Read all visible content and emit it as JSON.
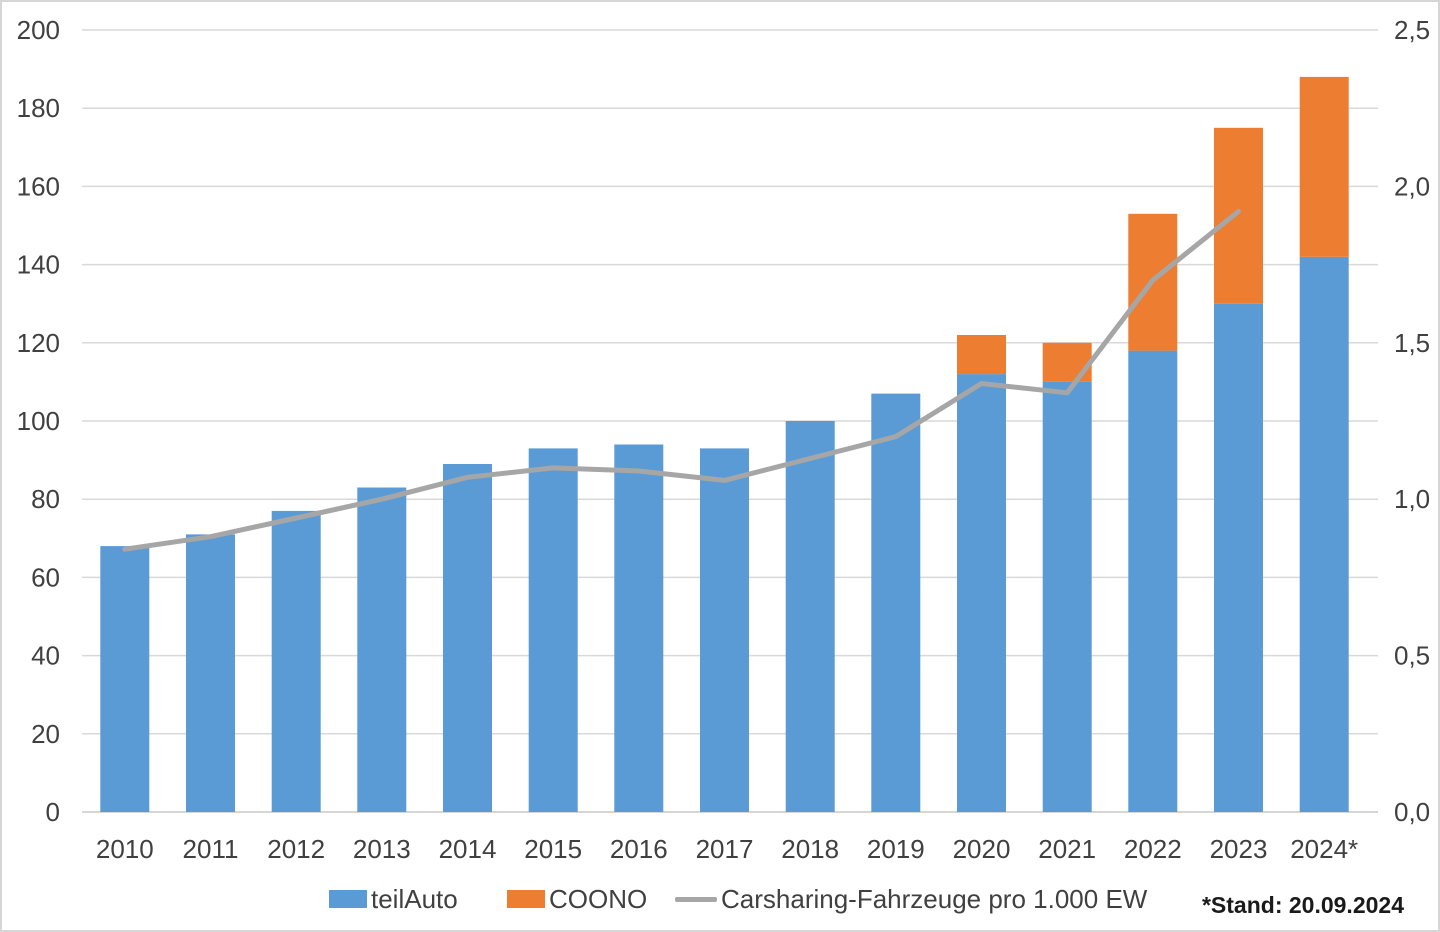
{
  "chart_data": {
    "type": "bar",
    "subtype": "stacked-bars-with-line",
    "categories": [
      "2010",
      "2011",
      "2012",
      "2013",
      "2014",
      "2015",
      "2016",
      "2017",
      "2018",
      "2019",
      "2020",
      "2021",
      "2022",
      "2023",
      "2024*"
    ],
    "series": [
      {
        "name": "teilAuto",
        "type": "bar",
        "axis": "left",
        "color": "#5B9BD5",
        "values": [
          68,
          71,
          77,
          83,
          89,
          93,
          94,
          93,
          100,
          107,
          112,
          110,
          118,
          130,
          142
        ]
      },
      {
        "name": "COONO",
        "type": "bar",
        "axis": "left",
        "color": "#ED7D31",
        "values": [
          0,
          0,
          0,
          0,
          0,
          0,
          0,
          0,
          0,
          0,
          10,
          10,
          35,
          45,
          46
        ]
      },
      {
        "name": "Carsharing-Fahrzeuge pro 1.000 EW",
        "type": "line",
        "axis": "right",
        "color": "#A6A6A6",
        "values": [
          0.84,
          0.88,
          0.94,
          1.0,
          1.07,
          1.1,
          1.09,
          1.06,
          1.13,
          1.2,
          1.37,
          1.34,
          1.7,
          1.92
        ]
      }
    ],
    "stacked": true,
    "title": "",
    "xlabel": "",
    "ylabel": "",
    "left_axis": {
      "min": 0,
      "max": 200,
      "step": 20,
      "tick_labels": [
        "0",
        "20",
        "40",
        "60",
        "80",
        "100",
        "120",
        "140",
        "160",
        "180",
        "200"
      ]
    },
    "right_axis": {
      "min": 0,
      "max": 2.5,
      "step": 0.5,
      "tick_labels": [
        "0,0",
        "0,5",
        "1,0",
        "1,5",
        "2,0",
        "2,5"
      ]
    },
    "grid": true,
    "grid_color": "#D9D9D9",
    "axis_text_color": "#404040",
    "legend_position": "bottom"
  },
  "legend": {
    "teilauto_label": "teilAuto",
    "coono_label": "COONO",
    "line_label": "Carsharing-Fahrzeuge pro 1.000 EW"
  },
  "footnote": "*Stand: 20.09.2024"
}
